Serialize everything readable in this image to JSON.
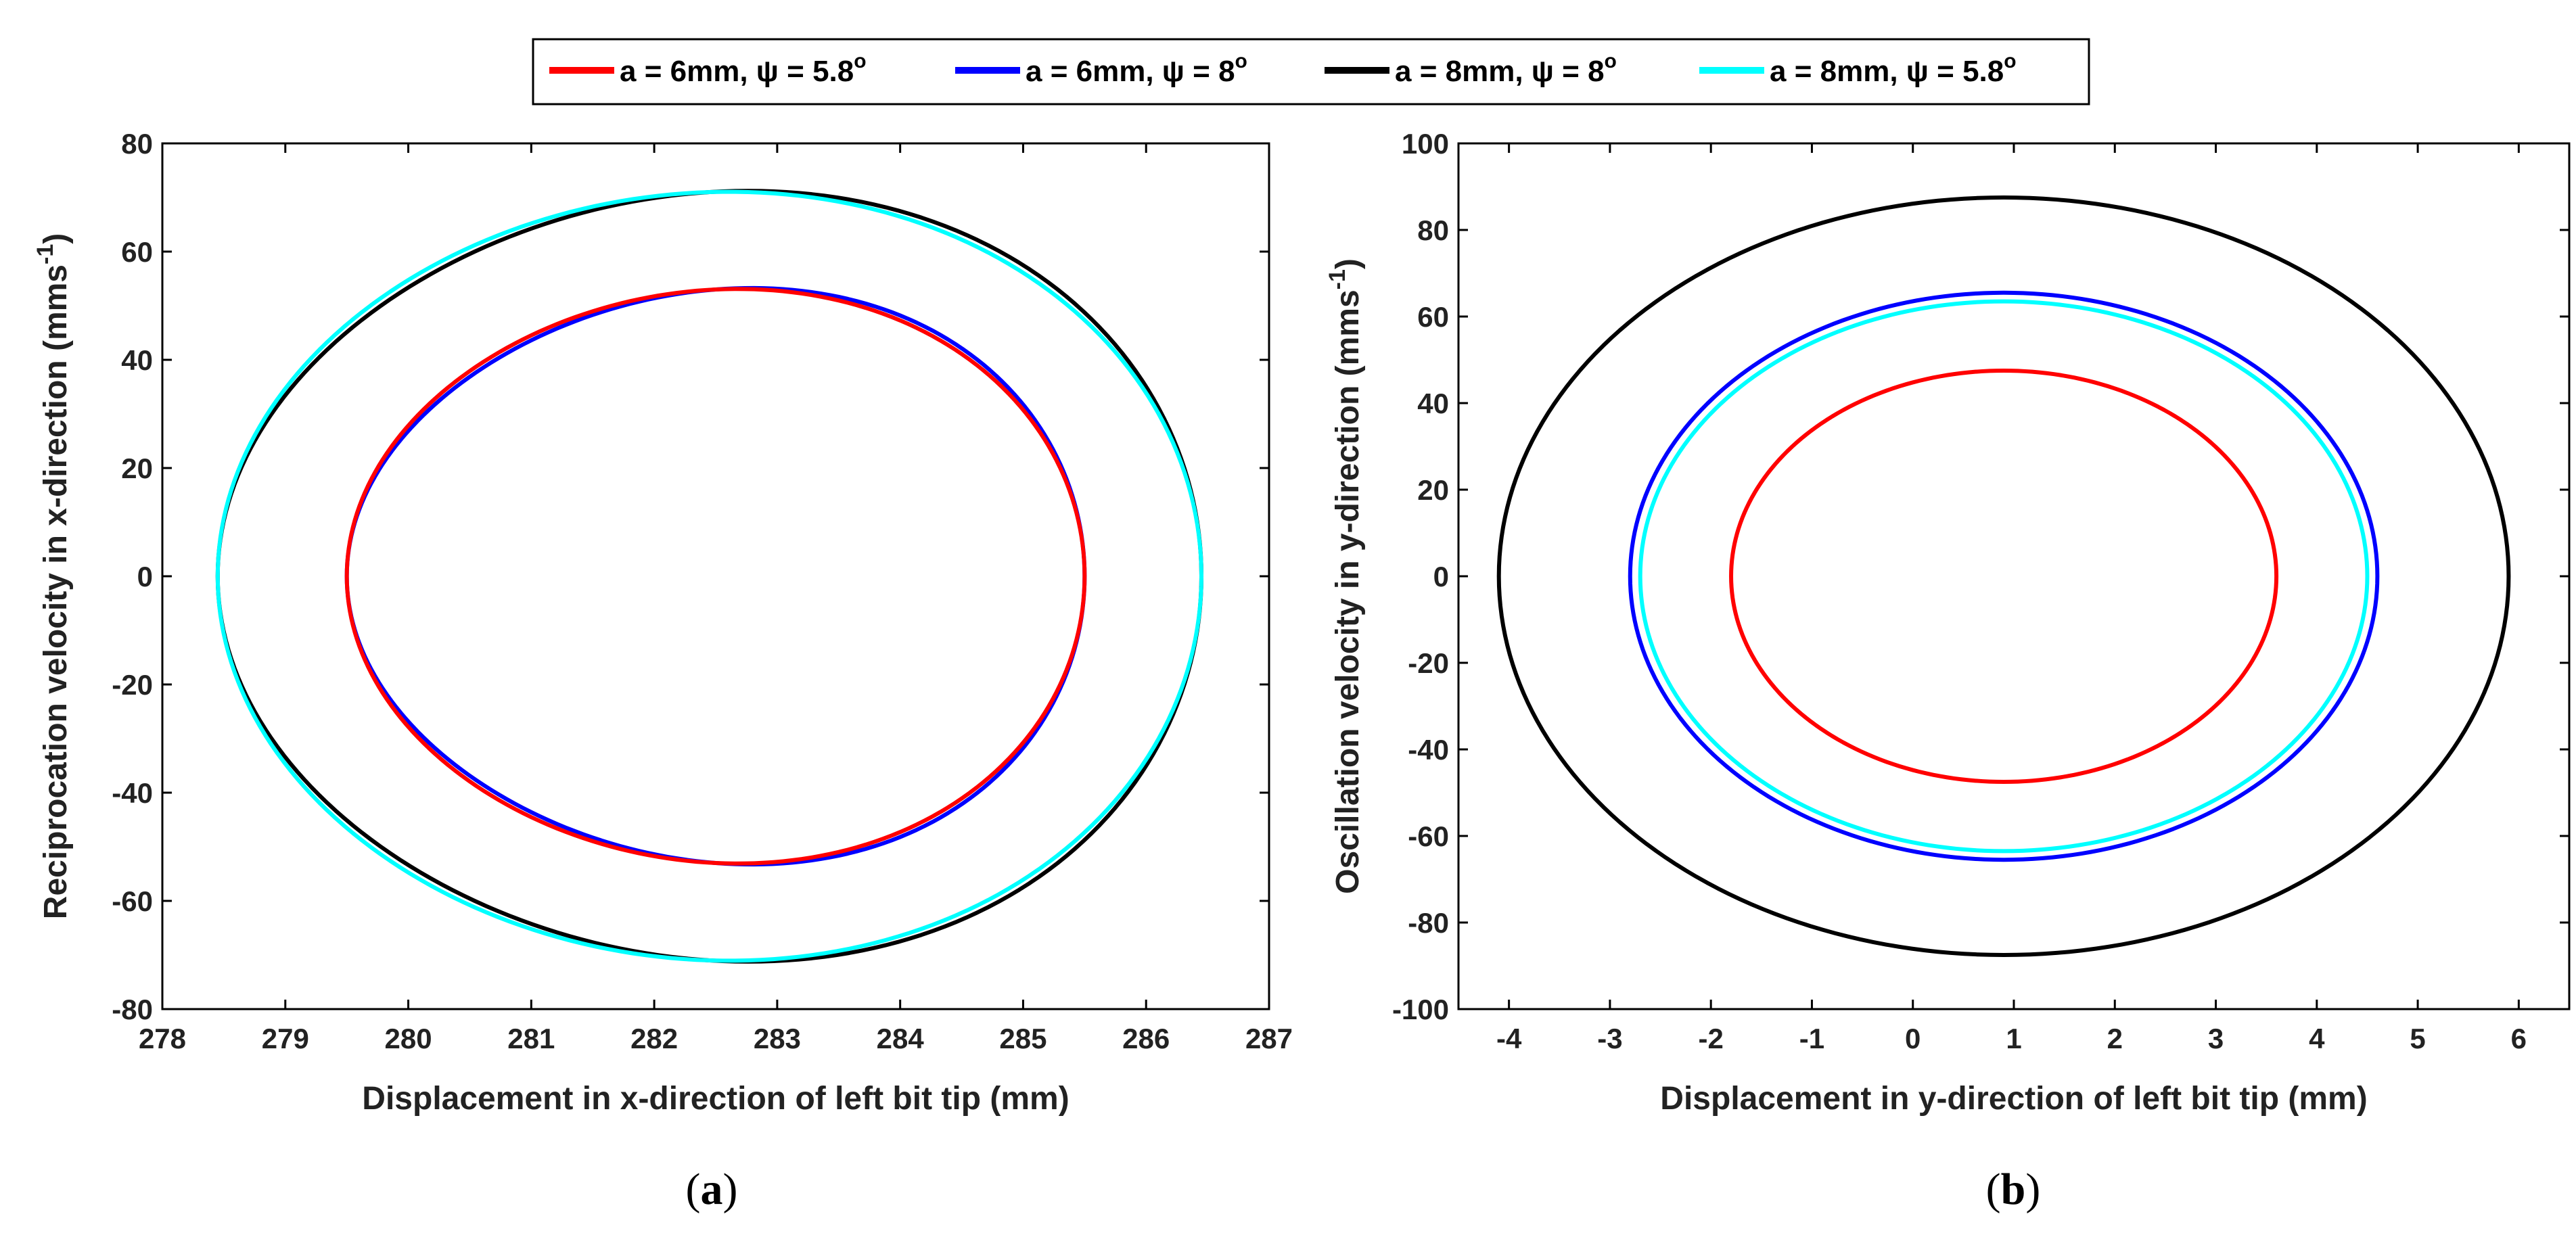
{
  "legend": {
    "entries": [
      {
        "label": "a = 6mm, ψ = 5.8",
        "sup": "o",
        "color": "#ff0000"
      },
      {
        "label": "a = 6mm, ψ = 8",
        "sup": "o",
        "color": "#0000ff"
      },
      {
        "label": "a = 8mm, ψ = 8",
        "sup": "o",
        "color": "#000000"
      },
      {
        "label": "a = 8mm, ψ = 5.8",
        "sup": "o",
        "color": "#00ffff"
      }
    ]
  },
  "chart_data": [
    {
      "type": "line",
      "panel": "a",
      "caption_letter": "a",
      "xlabel": "Displacement in x-direction of left bit tip (mm)",
      "ylabel": "Reciprocation velocity in x-direction (mms",
      "ylabel_sup": "-1",
      "xlim": [
        278,
        287
      ],
      "ylim": [
        -80,
        80
      ],
      "xticks": [
        278,
        279,
        280,
        281,
        282,
        283,
        284,
        285,
        286,
        287
      ],
      "yticks": [
        -80,
        -60,
        -40,
        -20,
        0,
        20,
        40,
        60,
        80
      ],
      "grid": false,
      "series": [
        {
          "name": "a = 6mm, ψ = 5.8°",
          "color": "#ff0000",
          "center_x": 282.5,
          "center_y": 0,
          "x_amplitude": 3.0,
          "y_amplitude": 53,
          "skew": 0.06
        },
        {
          "name": "a = 6mm, ψ = 8°",
          "color": "#0000ff",
          "center_x": 282.5,
          "center_y": 0,
          "x_amplitude": 3.0,
          "y_amplitude": 53,
          "skew": 0.1
        },
        {
          "name": "a = 8mm, ψ = 8°",
          "color": "#000000",
          "center_x": 282.45,
          "center_y": 0,
          "x_amplitude": 4.0,
          "y_amplitude": 71,
          "skew": 0.08
        },
        {
          "name": "a = 8mm, ψ = 5.8°",
          "color": "#00ffff",
          "center_x": 282.45,
          "center_y": 0,
          "x_amplitude": 4.0,
          "y_amplitude": 71,
          "skew": 0.04
        }
      ],
      "draw_order": [
        2,
        3,
        1,
        0
      ]
    },
    {
      "type": "line",
      "panel": "b",
      "caption_letter": "b",
      "xlabel": "Displacement in y-direction of left bit tip (mm)",
      "ylabel": "Oscillation velocity in y-direction (mms",
      "ylabel_sup": "-1",
      "xlim": [
        -4.5,
        6.5
      ],
      "ylim": [
        -100,
        100
      ],
      "xticks": [
        -4,
        -3,
        -2,
        -1,
        0,
        1,
        2,
        3,
        4,
        5,
        6
      ],
      "yticks": [
        -100,
        -80,
        -60,
        -40,
        -20,
        0,
        20,
        40,
        60,
        80,
        100
      ],
      "grid": false,
      "series": [
        {
          "name": "a = 6mm, ψ = 5.8°",
          "color": "#ff0000",
          "center_x": 0.9,
          "center_y": 0,
          "x_amplitude": 2.7,
          "y_amplitude": 47.5,
          "skew": 0
        },
        {
          "name": "a = 6mm, ψ = 8°",
          "color": "#0000ff",
          "center_x": 0.9,
          "center_y": 0,
          "x_amplitude": 3.7,
          "y_amplitude": 65.5,
          "skew": 0
        },
        {
          "name": "a = 8mm, ψ = 8°",
          "color": "#000000",
          "center_x": 0.9,
          "center_y": 0,
          "x_amplitude": 5.0,
          "y_amplitude": 87.5,
          "skew": 0
        },
        {
          "name": "a = 8mm, ψ = 5.8°",
          "color": "#00ffff",
          "center_x": 0.9,
          "center_y": 0,
          "x_amplitude": 3.6,
          "y_amplitude": 63.5,
          "skew": 0
        }
      ],
      "draw_order": [
        2,
        1,
        3,
        0
      ]
    }
  ]
}
